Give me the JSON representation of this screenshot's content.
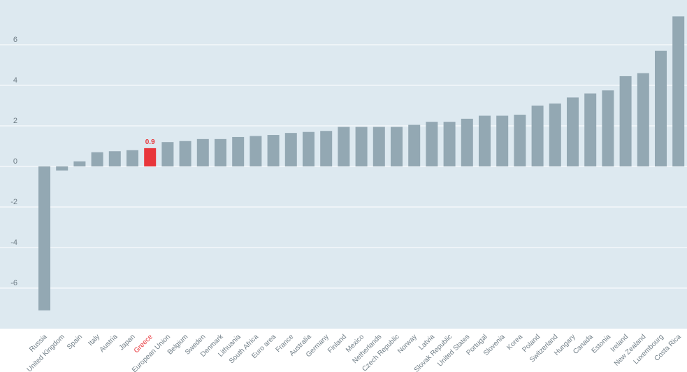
{
  "chart_data": {
    "type": "bar",
    "title": "",
    "xlabel": "",
    "ylabel": "",
    "ylim": [
      -8,
      7.5
    ],
    "yticks": [
      -6,
      -4,
      -2,
      0,
      2,
      4,
      6
    ],
    "grid": true,
    "categories": [
      "Russia",
      "United Kingdom",
      "Spain",
      "Italy",
      "Austria",
      "Japan",
      "Greece",
      "European Union",
      "Belgium",
      "Sweden",
      "Denmark",
      "Lithuania",
      "South Africa",
      "Euro area",
      "France",
      "Australia",
      "Germany",
      "Finland",
      "Mexico",
      "Netherlands",
      "Czech Republic",
      "Norway",
      "Latvia",
      "Slovak Republic",
      "United States",
      "Portugal",
      "Slovenia",
      "Korea",
      "Poland",
      "Switzerland",
      "Hungary",
      "Canada",
      "Estonia",
      "Ireland",
      "New Zealand",
      "Luxembourg",
      "Costa Rica"
    ],
    "values": [
      -7.1,
      -0.2,
      0.25,
      0.7,
      0.75,
      0.8,
      0.9,
      1.2,
      1.25,
      1.35,
      1.35,
      1.45,
      1.5,
      1.55,
      1.65,
      1.7,
      1.75,
      1.95,
      1.95,
      1.95,
      1.95,
      2.05,
      2.2,
      2.2,
      2.35,
      2.5,
      2.5,
      2.55,
      3.0,
      3.1,
      3.4,
      3.6,
      3.75,
      4.45,
      4.6,
      5.7,
      7.4
    ],
    "highlight": {
      "category": "Greece",
      "label": "0.9"
    },
    "colors": {
      "background": "#dde9f0",
      "bar": "#93a8b3",
      "highlight": "#e8363b",
      "grid": "#ffffff",
      "text": "#6f7d86"
    }
  }
}
